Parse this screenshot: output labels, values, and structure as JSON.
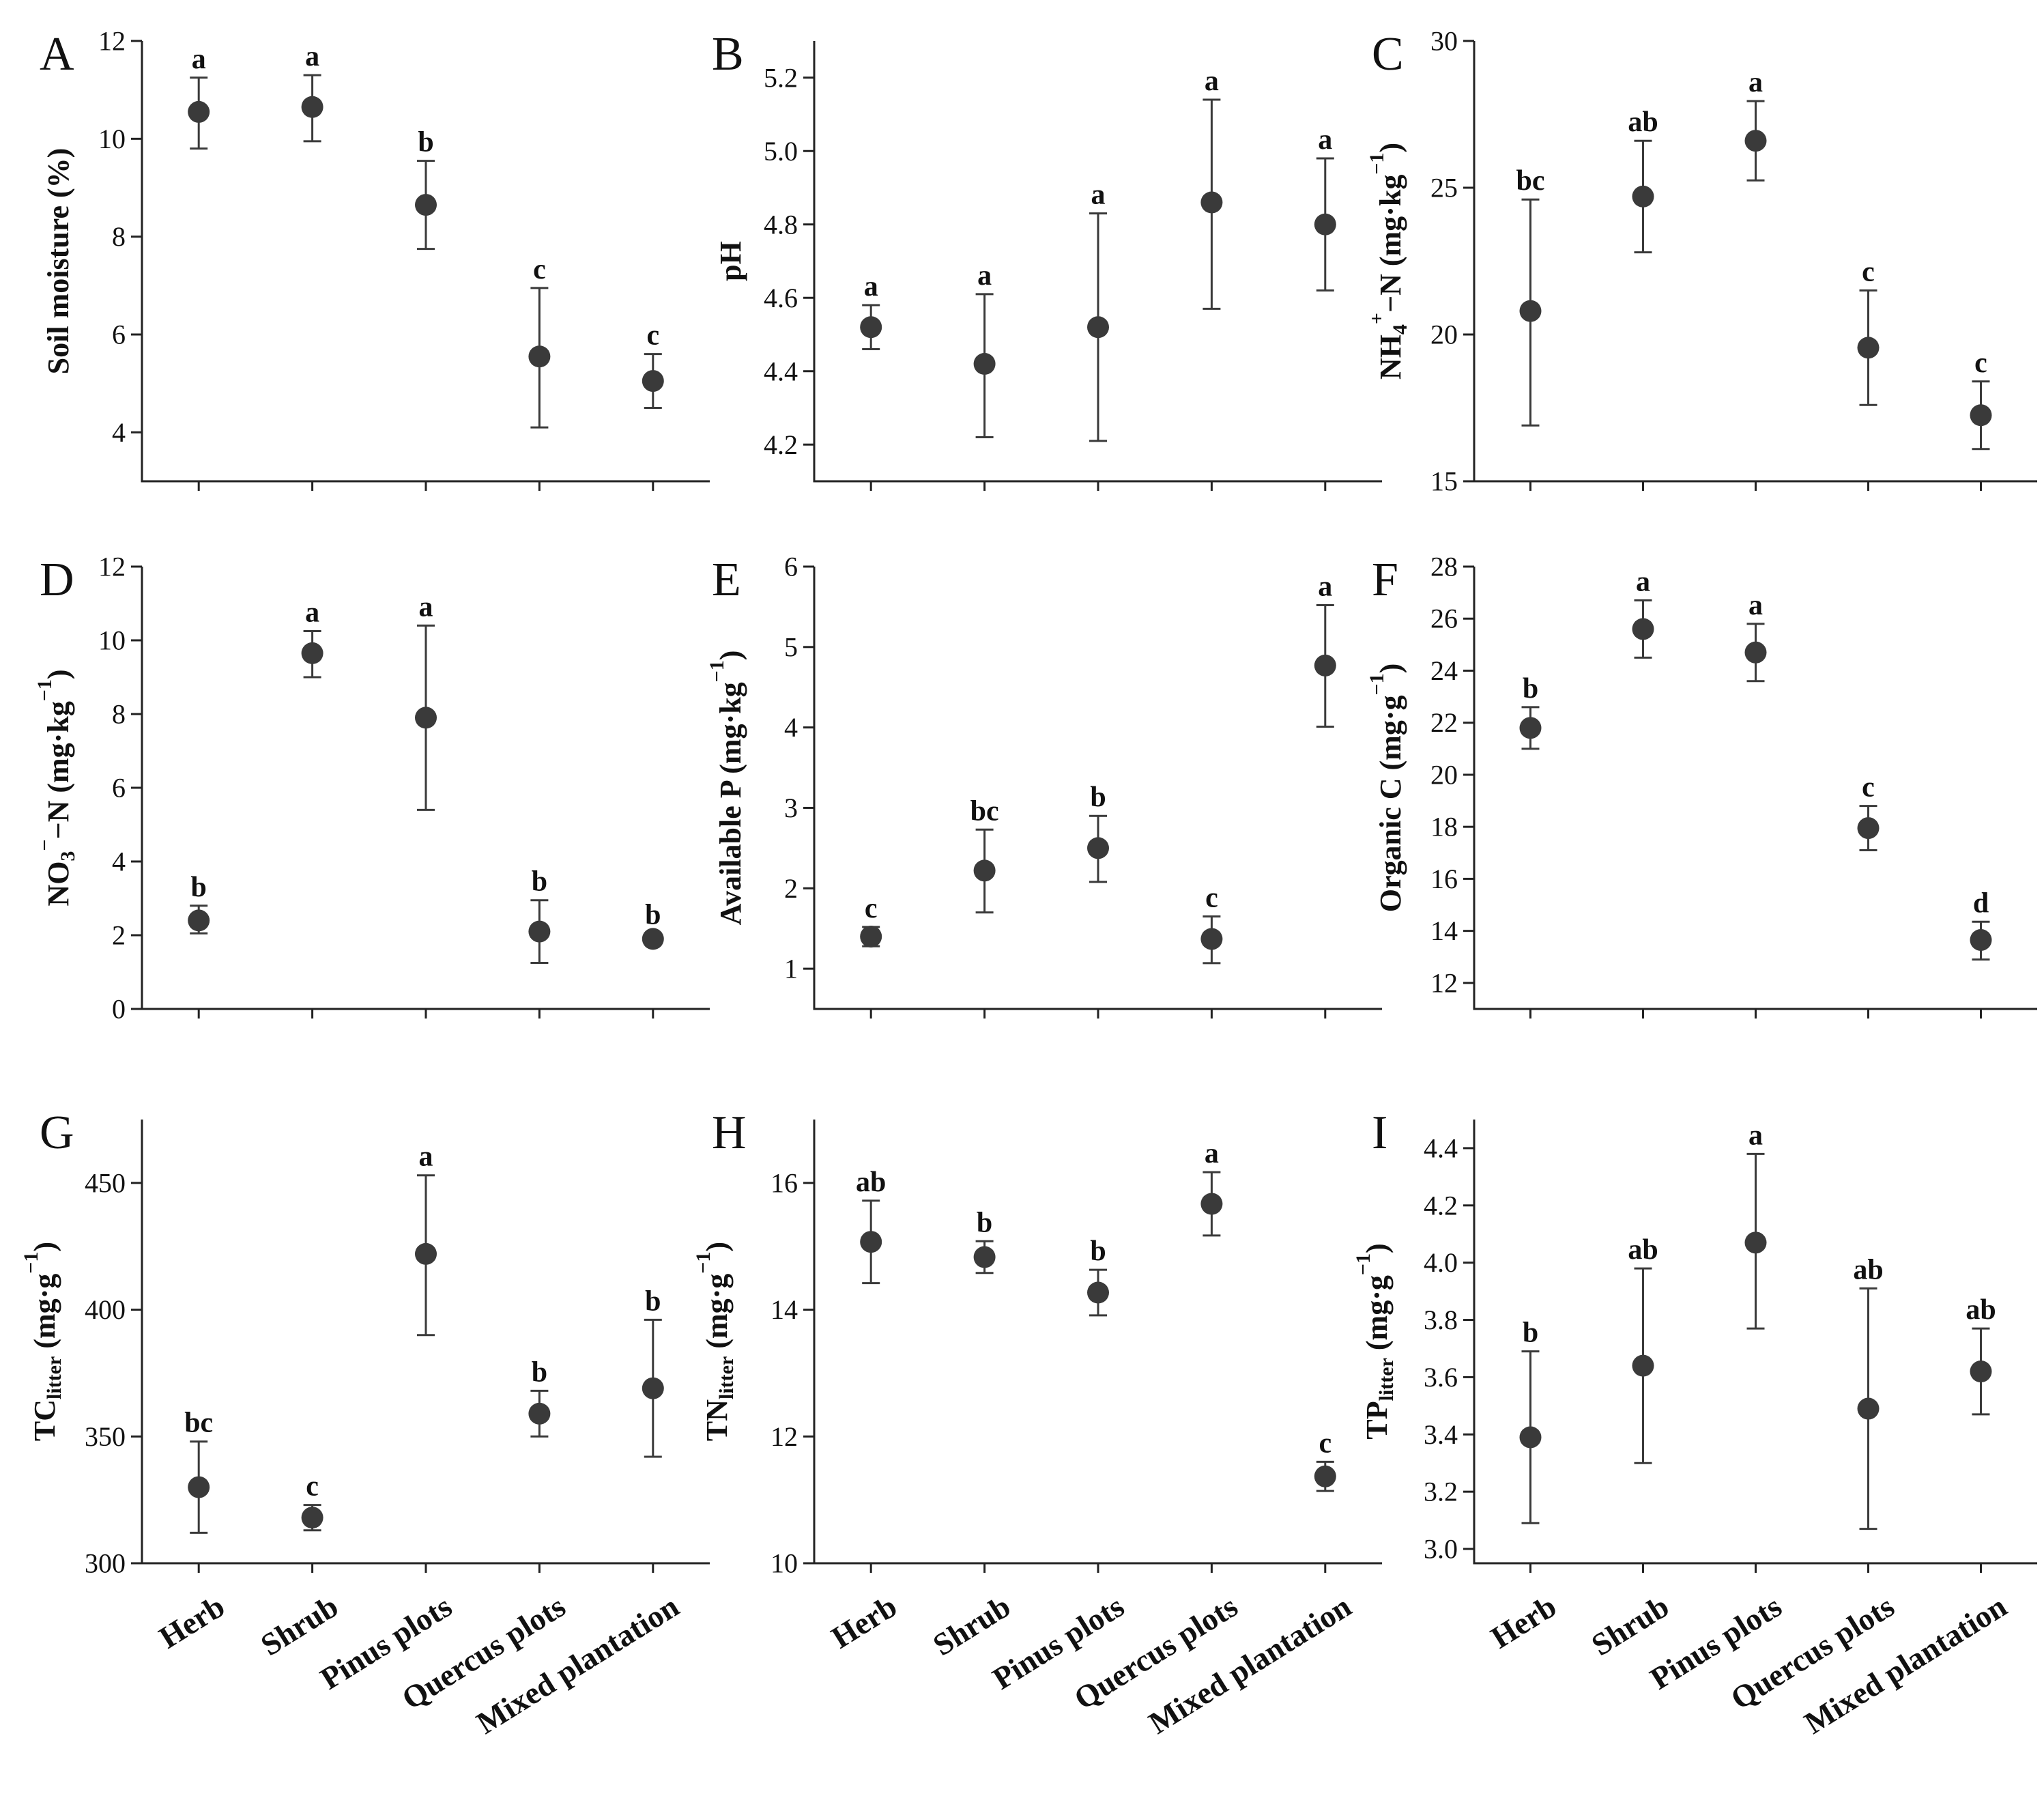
{
  "categories": [
    "Herb",
    "Shrub",
    "Pinus plots",
    "Quercus plots",
    "Mixed plantation"
  ],
  "chart_data": [
    {
      "panel": "A",
      "type": "scatter",
      "ylabel": {
        "main": "Soil moisture (%)"
      },
      "ylim": [
        3,
        12
      ],
      "yticks": [
        4,
        6,
        8,
        10,
        12
      ],
      "values": [
        10.55,
        10.65,
        8.65,
        5.55,
        5.05
      ],
      "err_high": [
        11.25,
        11.3,
        9.55,
        6.95,
        5.6
      ],
      "err_low": [
        9.8,
        9.95,
        7.75,
        4.1,
        4.5
      ],
      "sig": [
        "a",
        "a",
        "b",
        "c",
        "c"
      ]
    },
    {
      "panel": "B",
      "type": "scatter",
      "ylabel": {
        "main": "pH"
      },
      "ylim": [
        4.1,
        5.3
      ],
      "yticks": [
        4.2,
        4.4,
        4.6,
        4.8,
        5.0,
        5.2
      ],
      "values": [
        4.52,
        4.42,
        4.52,
        4.86,
        4.8
      ],
      "err_high": [
        4.58,
        4.61,
        4.83,
        5.14,
        4.98
      ],
      "err_low": [
        4.46,
        4.22,
        4.21,
        4.57,
        4.62
      ],
      "sig": [
        "a",
        "a",
        "a",
        "a",
        "a"
      ]
    },
    {
      "panel": "C",
      "type": "scatter",
      "ylabel": {
        "pre": "NH",
        "sub": "4",
        "sup": "+",
        "post": "−N (mg·kg",
        "post_sup": "−1",
        "end": ")"
      },
      "ylim": [
        15,
        30
      ],
      "yticks": [
        15,
        20,
        25,
        30
      ],
      "values": [
        20.8,
        24.7,
        26.6,
        19.55,
        17.25
      ],
      "err_high": [
        24.6,
        26.6,
        27.95,
        21.5,
        18.4
      ],
      "err_low": [
        16.9,
        22.8,
        25.25,
        17.6,
        16.1
      ],
      "sig": [
        "bc",
        "ab",
        "a",
        "c",
        "c"
      ]
    },
    {
      "panel": "D",
      "type": "scatter",
      "ylabel": {
        "pre": "NO",
        "sub": "3",
        "sup": "−",
        "post": "−N (mg·kg",
        "post_sup": "−1",
        "end": ")"
      },
      "ylim": [
        0,
        12
      ],
      "yticks": [
        0,
        2,
        4,
        6,
        8,
        10,
        12
      ],
      "values": [
        2.4,
        9.65,
        7.9,
        2.1,
        1.9
      ],
      "err_high": [
        2.8,
        10.25,
        10.4,
        2.95,
        2.05
      ],
      "err_low": [
        2.05,
        9.0,
        5.4,
        1.25,
        1.75
      ],
      "sig": [
        "b",
        "a",
        "a",
        "b",
        "b"
      ]
    },
    {
      "panel": "E",
      "type": "scatter",
      "ylabel": {
        "pre": "Available P (mg·kg",
        "sup": "−1",
        "end": ")"
      },
      "ylim": [
        0.5,
        6
      ],
      "yticks": [
        1,
        2,
        3,
        4,
        5,
        6
      ],
      "values": [
        1.4,
        2.22,
        2.5,
        1.37,
        4.77
      ],
      "err_high": [
        1.52,
        2.73,
        2.9,
        1.65,
        5.52
      ],
      "err_low": [
        1.28,
        1.7,
        2.08,
        1.07,
        4.01
      ],
      "sig": [
        "c",
        "bc",
        "b",
        "c",
        "a"
      ]
    },
    {
      "panel": "F",
      "type": "scatter",
      "ylabel": {
        "pre": "Organic C (mg·g",
        "sup": "−1",
        "end": ")"
      },
      "ylim": [
        11,
        28
      ],
      "yticks": [
        12,
        14,
        16,
        18,
        20,
        22,
        24,
        26,
        28
      ],
      "values": [
        21.8,
        25.6,
        24.7,
        17.95,
        13.65
      ],
      "err_high": [
        22.6,
        26.7,
        25.8,
        18.8,
        14.35
      ],
      "err_low": [
        21.0,
        24.5,
        23.6,
        17.1,
        12.9
      ],
      "sig": [
        "b",
        "a",
        "a",
        "c",
        "d"
      ]
    },
    {
      "panel": "G",
      "type": "scatter",
      "ylabel": {
        "pre": "TC",
        "sub": "litter",
        "post": "  (mg·g",
        "post_sup": "−1",
        "end": ")"
      },
      "ylim": [
        300,
        475
      ],
      "yticks": [
        300,
        350,
        400,
        450
      ],
      "values": [
        330,
        318,
        422,
        359,
        369
      ],
      "err_high": [
        348,
        323,
        453,
        368,
        396
      ],
      "err_low": [
        312,
        313,
        390,
        350,
        342
      ],
      "sig": [
        "bc",
        "c",
        "a",
        "b",
        "b"
      ]
    },
    {
      "panel": "H",
      "type": "scatter",
      "ylabel": {
        "pre": "TN",
        "sub": "litter",
        "post": "  (mg·g",
        "post_sup": "−1",
        "end": ")"
      },
      "ylim": [
        10,
        17
      ],
      "yticks": [
        10,
        12,
        14,
        16
      ],
      "values": [
        15.07,
        14.83,
        14.27,
        15.67,
        11.37
      ],
      "err_high": [
        15.72,
        15.08,
        14.63,
        16.17,
        11.6
      ],
      "err_low": [
        14.42,
        14.58,
        13.91,
        15.17,
        11.14
      ],
      "sig": [
        "ab",
        "b",
        "b",
        "a",
        "c"
      ]
    },
    {
      "panel": "I",
      "type": "scatter",
      "ylabel": {
        "pre": "TP",
        "sub": "litter",
        "post": " (mg·g",
        "post_sup": "−1",
        "end": ")"
      },
      "ylim": [
        2.95,
        4.5
      ],
      "yticks": [
        3.0,
        3.2,
        3.4,
        3.6,
        3.8,
        4.0,
        4.2,
        4.4
      ],
      "values": [
        3.39,
        3.64,
        4.07,
        3.49,
        3.62
      ],
      "err_high": [
        3.69,
        3.98,
        4.38,
        3.91,
        3.77
      ],
      "err_low": [
        3.09,
        3.3,
        3.77,
        3.07,
        3.47
      ],
      "sig": [
        "b",
        "ab",
        "a",
        "ab",
        "ab"
      ]
    }
  ]
}
